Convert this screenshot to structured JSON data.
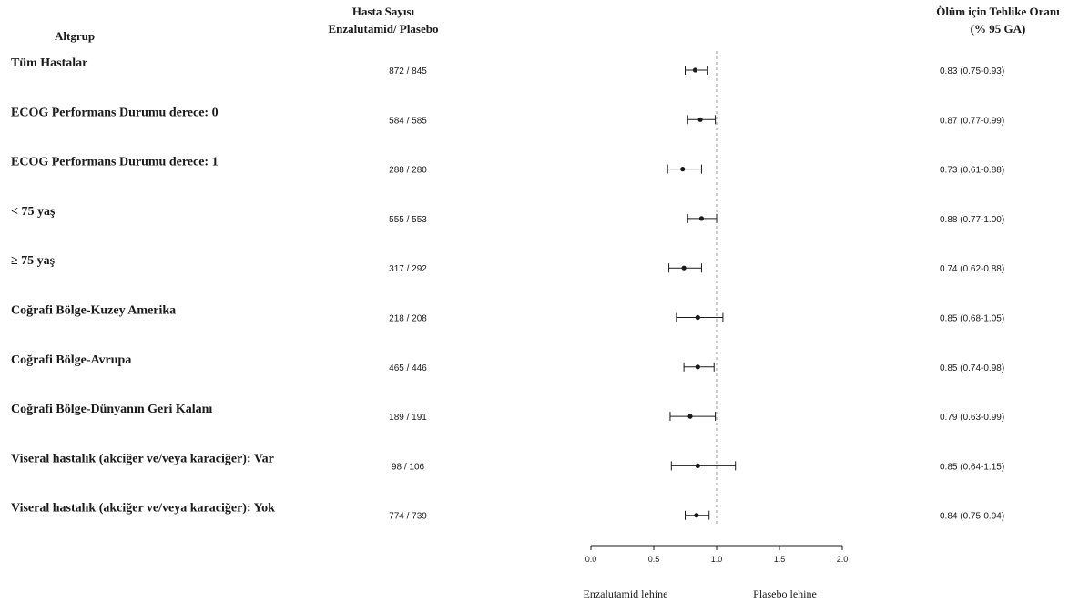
{
  "chart_data": {
    "type": "forest",
    "title": "",
    "headers": {
      "subgroup": "Altgrup",
      "counts_line1": "Hasta Sayısı",
      "counts_line2": "Enzalutamid/ Plasebo",
      "hr_line1": "Ölüm için Tehlike Oranı",
      "hr_line2": "(% 95 GA)"
    },
    "rows": [
      {
        "label": "Tüm Hastalar",
        "counts": "872 / 845",
        "hr": 0.83,
        "lo": 0.75,
        "hi": 0.93,
        "hr_text": "0.83 (0.75-0.93)"
      },
      {
        "label": "ECOG Performans Durumu derece: 0",
        "counts": "584 / 585",
        "hr": 0.87,
        "lo": 0.77,
        "hi": 0.99,
        "hr_text": "0.87 (0.77-0.99)"
      },
      {
        "label": "ECOG Performans Durumu derece: 1",
        "counts": "288 / 280",
        "hr": 0.73,
        "lo": 0.61,
        "hi": 0.88,
        "hr_text": "0.73 (0.61-0.88)"
      },
      {
        "label": "< 75 yaş",
        "counts": "555 / 553",
        "hr": 0.88,
        "lo": 0.77,
        "hi": 1.0,
        "hr_text": "0.88 (0.77-1.00)"
      },
      {
        "label": "≥ 75 yaş",
        "counts": "317 / 292",
        "hr": 0.74,
        "lo": 0.62,
        "hi": 0.88,
        "hr_text": "0.74 (0.62-0.88)"
      },
      {
        "label": "Coğrafi Bölge-Kuzey Amerika",
        "counts": "218 / 208",
        "hr": 0.85,
        "lo": 0.68,
        "hi": 1.05,
        "hr_text": "0.85 (0.68-1.05)"
      },
      {
        "label": "Coğrafi Bölge-Avrupa",
        "counts": "465 / 446",
        "hr": 0.85,
        "lo": 0.74,
        "hi": 0.98,
        "hr_text": "0.85 (0.74-0.98)"
      },
      {
        "label": "Coğrafi Bölge-Dünyanın Geri Kalanı",
        "counts": "189 / 191",
        "hr": 0.79,
        "lo": 0.63,
        "hi": 0.99,
        "hr_text": "0.79 (0.63-0.99)"
      },
      {
        "label": "Viseral hastalık (akciğer ve/veya karaciğer): Var",
        "counts": "98 / 106",
        "hr": 0.85,
        "lo": 0.64,
        "hi": 1.15,
        "hr_text": "0.85 (0.64-1.15)"
      },
      {
        "label": "Viseral hastalık (akciğer ve/veya karaciğer): Yok",
        "counts": "774 / 739",
        "hr": 0.84,
        "lo": 0.75,
        "hi": 0.94,
        "hr_text": "0.84 (0.75-0.94)"
      }
    ],
    "x_axis": {
      "min": 0.0,
      "max": 2.0,
      "ticks": [
        0.0,
        0.5,
        1.0,
        1.5,
        2.0
      ],
      "tick_labels": [
        "0.0",
        "0.5",
        "1.0",
        "1.5",
        "2.0"
      ],
      "reference_line": 1.0
    },
    "favor_left": "Enzalutamid lehine",
    "favor_right": "Plasebo lehine",
    "colors": {
      "ink": "#1a1a1a",
      "reference": "#9a9a9a"
    }
  }
}
